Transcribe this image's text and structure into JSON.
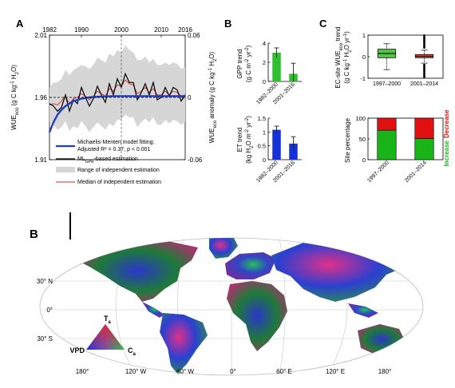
{
  "panels": {
    "A": "A",
    "B_top": "B",
    "C_top": "C",
    "B_map": "B"
  },
  "colors": {
    "ml_line": "#000000",
    "mm_fit": "#1f3fbf",
    "median": "#d62a2a",
    "range": "#d6d6d6",
    "gpp_bar": "#2fbf2f",
    "et_bar": "#1432d8",
    "box_green": "#55c24a",
    "box_red": "#d9462b",
    "increase": "#18b418",
    "decrease": "#e01010"
  },
  "chart_data": [
    {
      "id": "A",
      "type": "line",
      "x_top_ticks": [
        "1982",
        "1990",
        "2000",
        "2010",
        "2016"
      ],
      "ylabel_left": "WUE",
      "ylabel_left_sub": "eco",
      "ylabel_left_unit": "(g C kg",
      "ylabel_left_sup": "-1",
      "ylabel_left_unit2": " H",
      "ylabel_left_sub2": "2",
      "ylabel_left_unit3": "O)",
      "yticks_left": [
        "2.01",
        "1.96",
        "1.91"
      ],
      "ylim_left": [
        1.91,
        2.01
      ],
      "ylabel_right": "WUE",
      "ylabel_right_sub": "eco",
      "ylabel_right_rest": " anomaly (g C kg",
      "ylabel_right_sup": "-1",
      "ylabel_right_end": " H",
      "ylabel_right_sub2": "2",
      "ylabel_right_end2": "O)",
      "yticks_right": [
        "0.06",
        "0",
        "-0.06"
      ],
      "ylim_right": [
        -0.06,
        0.06
      ],
      "x": [
        1982,
        1983,
        1984,
        1985,
        1986,
        1987,
        1988,
        1989,
        1990,
        1991,
        1992,
        1993,
        1994,
        1995,
        1996,
        1997,
        1998,
        1999,
        2000,
        2001,
        2002,
        2003,
        2004,
        2005,
        2006,
        2007,
        2008,
        2009,
        2010,
        2011,
        2012,
        2013,
        2014,
        2015,
        2016
      ],
      "series": [
        {
          "key": "ml",
          "values": [
            1.955,
            1.953,
            1.949,
            1.952,
            1.962,
            1.949,
            1.958,
            1.955,
            1.968,
            1.96,
            1.953,
            1.959,
            1.969,
            1.962,
            1.956,
            1.971,
            1.962,
            1.975,
            1.968,
            1.979,
            1.972,
            1.972,
            1.958,
            1.964,
            1.971,
            1.962,
            1.972,
            1.958,
            1.96,
            1.968,
            1.961,
            1.968,
            1.966,
            1.957,
            1.962
          ]
        },
        {
          "key": "median",
          "values": [
            1.954,
            1.955,
            1.954,
            1.957,
            1.961,
            1.955,
            1.959,
            1.96,
            1.963,
            1.961,
            1.958,
            1.961,
            1.965,
            1.963,
            1.961,
            1.967,
            1.965,
            1.97,
            1.969,
            1.974,
            1.971,
            1.97,
            1.963,
            1.965,
            1.968,
            1.964,
            1.967,
            1.962,
            1.962,
            1.965,
            1.962,
            1.965,
            1.964,
            1.961,
            1.962
          ]
        },
        {
          "key": "mm",
          "values": [
            1.932,
            1.94,
            1.946,
            1.95,
            1.953,
            1.955,
            1.957,
            1.958,
            1.959,
            1.9595,
            1.96,
            1.9603,
            1.9605,
            1.9607,
            1.9608,
            1.9609,
            1.961,
            1.961,
            1.961,
            1.961,
            1.961,
            1.961,
            1.961,
            1.961,
            1.961,
            1.961,
            1.961,
            1.961,
            1.961,
            1.961,
            1.961,
            1.961,
            1.961,
            1.961,
            1.961
          ]
        },
        {
          "key": "range_hi",
          "values": [
            1.968,
            1.972,
            1.972,
            1.975,
            1.982,
            1.978,
            1.982,
            1.984,
            1.986,
            1.985,
            1.983,
            1.986,
            1.992,
            1.99,
            1.988,
            1.995,
            1.993,
            1.998,
            1.996,
            2.002,
            1.998,
            1.996,
            1.99,
            1.99,
            1.993,
            1.988,
            1.991,
            1.986,
            1.986,
            1.988,
            1.986,
            1.988,
            1.987,
            1.983,
            1.984
          ]
        },
        {
          "key": "range_lo",
          "values": [
            1.94,
            1.938,
            1.934,
            1.936,
            1.941,
            1.933,
            1.937,
            1.935,
            1.941,
            1.937,
            1.932,
            1.936,
            1.94,
            1.937,
            1.934,
            1.939,
            1.937,
            1.942,
            1.942,
            1.946,
            1.944,
            1.944,
            1.936,
            1.94,
            1.943,
            1.94,
            1.944,
            1.938,
            1.938,
            1.942,
            1.939,
            1.942,
            1.941,
            1.938,
            1.94
          ]
        }
      ],
      "vline_year": 2000,
      "legend": [
        {
          "key": "mm",
          "label": "Michaelis-Menten model fitting:"
        },
        {
          "key": "mm2",
          "label": "Adjusted R² = 0.37, p < 0.001"
        },
        {
          "key": "ml",
          "label_pre": "ML",
          "label_sub": "GPR",
          "label_post": "-based estimation"
        },
        {
          "key": "range",
          "label": "Range of independent estimation"
        },
        {
          "key": "median",
          "label": "Median of independent estimation"
        }
      ]
    },
    {
      "id": "B_gpp",
      "type": "bar",
      "ylabel_line1": "GPP trend",
      "ylabel_line2_pre": "(g C m",
      "ylabel_line2_sup": "-2",
      "ylabel_line2_mid": " yr",
      "ylabel_line2_sup2": "-2",
      "ylabel_line2_post": ")",
      "categories": [
        "1982–2000",
        "2001–2016"
      ],
      "values": [
        3.0,
        0.8
      ],
      "errors": [
        0.5,
        1.1
      ],
      "ylim": [
        0,
        4
      ],
      "yticks": [
        "4",
        "2",
        "0"
      ]
    },
    {
      "id": "B_et",
      "type": "bar",
      "ylabel_line1": "ET trend",
      "ylabel_line2_pre": "(kg H",
      "ylabel_line2_sub": "2",
      "ylabel_line2_mid": "O m",
      "ylabel_line2_sup": "-2",
      "ylabel_line2_mid2": " yr",
      "ylabel_line2_sup2": "-2",
      "ylabel_line2_post": ")",
      "categories": [
        "1982–2000",
        "2001–2016"
      ],
      "values": [
        1.08,
        0.58
      ],
      "errors": [
        0.13,
        0.25
      ],
      "ylim": [
        0,
        1.5
      ],
      "yticks": [
        "1.5",
        "1",
        "0.5",
        "0"
      ]
    },
    {
      "id": "C_box",
      "type": "box",
      "ylabel_line1_pre": "EC-site WUE",
      "ylabel_line1_sub": "eco",
      "ylabel_line1_post": " trend",
      "ylabel_line2_pre": "(g C kg",
      "ylabel_line2_sup": "-1",
      "ylabel_line2_mid": " H",
      "ylabel_line2_sub": "2",
      "ylabel_line2_mid2": "O yr",
      "ylabel_line2_sup2": "-1",
      "ylabel_line2_post": ")",
      "categories": [
        "1997–2000",
        "2001–2014"
      ],
      "boxes": [
        {
          "q1": -0.05,
          "median": 0.15,
          "q3": 0.35,
          "whisker_lo": -0.6,
          "whisker_hi": 0.6,
          "outliers": []
        },
        {
          "q1": -0.05,
          "median": 0.02,
          "q3": 0.1,
          "whisker_lo": -0.3,
          "whisker_hi": 0.3,
          "outliers": [
            0.42,
            0.5,
            0.58,
            0.66,
            0.74,
            0.82,
            0.9,
            0.98,
            -0.38,
            -0.46,
            -0.54,
            -0.62,
            -0.7,
            -0.78,
            -0.86,
            -0.94
          ]
        }
      ],
      "ylim": [
        -1,
        1
      ],
      "yticks": [
        "1",
        "0",
        "-1"
      ]
    },
    {
      "id": "C_pct",
      "type": "bar",
      "stacked": true,
      "ylabel": "Site percentage",
      "categories": [
        "1997–2000",
        "2001–2014"
      ],
      "series": [
        {
          "name": "Increase",
          "values": [
            71,
            51
          ]
        },
        {
          "name": "Decrease",
          "values": [
            29,
            49
          ]
        }
      ],
      "ylim": [
        0,
        100
      ],
      "yticks": [
        "100",
        "50",
        "0"
      ]
    }
  ],
  "map": {
    "lat_labels": [
      "30° N",
      "0°",
      "30° S"
    ],
    "lon_labels": [
      "180°",
      "120° W",
      "60° W",
      "0°",
      "60° E",
      "120° E",
      "180°"
    ],
    "triangle": {
      "top": "T",
      "top_sub": "a",
      "left": "VPD",
      "right": "C",
      "right_sub": "a"
    }
  }
}
